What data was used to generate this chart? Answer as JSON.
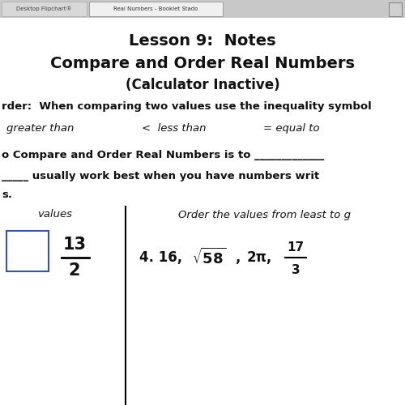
{
  "bg_color": "#e8e8e8",
  "content_bg": "#ffffff",
  "text_color": "#111111",
  "title_line1": "Lesson 9:  Notes",
  "title_line2": "Compare and Order Real Numbers",
  "title_line3": "(Calculator Inactive)",
  "body_line1": "rder:  When comparing two values use the inequality symbol",
  "gt_text": "greater than",
  "lt_text": "<  less than",
  "eq_text": "= equal to",
  "body_line2": "o Compare and Order Real Numbers is to _____________",
  "body_line3": "_____ usually work best when you have numbers writ",
  "body_line4": "s.",
  "col_left_label": "values",
  "col_right_label": "Order the values from least to g",
  "fraction_num": "13",
  "fraction_den": "2",
  "problem_text": "4. 16,",
  "pi_text": "2π,",
  "frac2_num": "17",
  "frac2_den": "3",
  "tab1_text": "Desktop Flipchart®",
  "tab2_text": "Real Numbers - Booklet Stado",
  "tab_bar_bg": "#c8c8c8",
  "tab1_bg": "#d8d8d8",
  "tab2_bg": "#f0f0f0",
  "icon_bg": "#d0d0d0"
}
